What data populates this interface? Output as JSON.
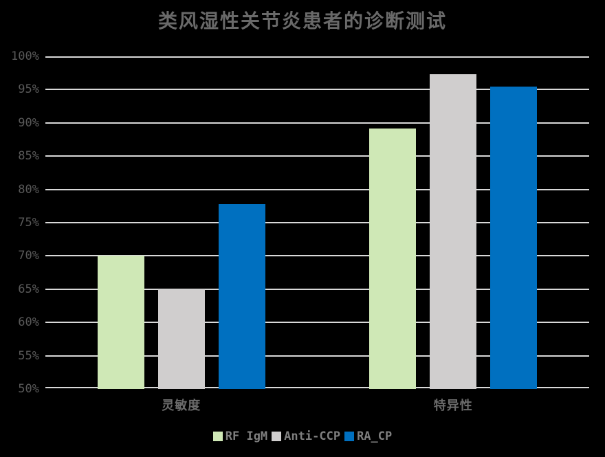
{
  "chart_data": {
    "type": "bar",
    "title": "类风湿性关节炎患者的诊断测试",
    "categories": [
      "灵敏度",
      "特异性"
    ],
    "series": [
      {
        "name": "RF IgM",
        "color": "#cfe8b6",
        "values": [
          70,
          89.2
        ]
      },
      {
        "name": "Anti-CCP",
        "color": "#d0cece",
        "values": [
          65,
          97.3
        ]
      },
      {
        "name": "RA_CP",
        "color": "#0070c0",
        "values": [
          77.8,
          95.5
        ]
      }
    ],
    "ylim": [
      50,
      100
    ],
    "ytick_step": 5,
    "ytick_labels": [
      "100%",
      "95%",
      "90%",
      "85%",
      "80%",
      "75%",
      "70%",
      "65%",
      "60%",
      "55%",
      "50%"
    ],
    "xlabel": "",
    "ylabel": "",
    "grid": true,
    "legend_position": "bottom"
  },
  "style": {
    "background": "#000000",
    "title_color": "#696969",
    "ytick_color": "#595959",
    "category_label_color": "#6b6b6b",
    "legend_text_color": "#7f7f7f",
    "gridline_color": "#d9d9d9"
  }
}
